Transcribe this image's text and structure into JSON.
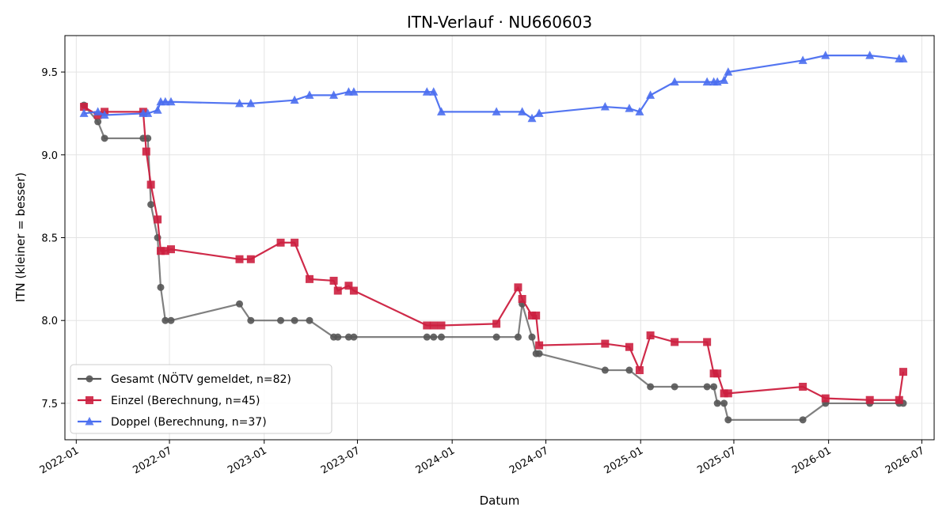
{
  "chart_data": {
    "type": "line",
    "title": "ITN-Verlauf · NU660603",
    "xlabel": "Datum",
    "ylabel": "ITN  (kleiner = besser)",
    "x_ticks": [
      "2022-01",
      "2022-07",
      "2023-01",
      "2023-07",
      "2024-01",
      "2024-07",
      "2025-01",
      "2025-07",
      "2026-01",
      "2026-07"
    ],
    "y_ticks": [
      "7.5",
      "8.0",
      "8.5",
      "9.0",
      "9.5"
    ],
    "xlim": [
      "2021-12-10",
      "2026-07-25"
    ],
    "ylim": [
      7.28,
      9.72
    ],
    "grid": true,
    "legend_position": "lower-left",
    "series": [
      {
        "name": "Gesamt (NÖTV gemeldet, n=82)",
        "color": "#555555",
        "marker": "circle",
        "points": [
          [
            "2022-01-16",
            9.3
          ],
          [
            "2022-02-12",
            9.2
          ],
          [
            "2022-02-25",
            9.1
          ],
          [
            "2022-05-11",
            9.1
          ],
          [
            "2022-05-20",
            9.1
          ],
          [
            "2022-05-26",
            8.7
          ],
          [
            "2022-06-08",
            8.5
          ],
          [
            "2022-06-14",
            8.2
          ],
          [
            "2022-06-23",
            8.0
          ],
          [
            "2022-07-04",
            8.0
          ],
          [
            "2022-11-14",
            8.1
          ],
          [
            "2022-12-06",
            8.0
          ],
          [
            "2023-02-02",
            8.0
          ],
          [
            "2023-03-01",
            8.0
          ],
          [
            "2023-03-30",
            8.0
          ],
          [
            "2023-05-16",
            7.9
          ],
          [
            "2023-05-24",
            7.9
          ],
          [
            "2023-06-14",
            7.9
          ],
          [
            "2023-06-24",
            7.9
          ],
          [
            "2023-11-13",
            7.9
          ],
          [
            "2023-11-26",
            7.9
          ],
          [
            "2023-12-11",
            7.9
          ],
          [
            "2024-03-27",
            7.9
          ],
          [
            "2024-05-08",
            7.9
          ],
          [
            "2024-05-16",
            8.1
          ],
          [
            "2024-06-04",
            7.9
          ],
          [
            "2024-06-12",
            7.8
          ],
          [
            "2024-06-18",
            7.8
          ],
          [
            "2024-10-24",
            7.7
          ],
          [
            "2024-12-10",
            7.7
          ],
          [
            "2025-01-20",
            7.6
          ],
          [
            "2025-03-08",
            7.6
          ],
          [
            "2025-05-10",
            7.6
          ],
          [
            "2025-05-23",
            7.6
          ],
          [
            "2025-05-30",
            7.5
          ],
          [
            "2025-06-12",
            7.5
          ],
          [
            "2025-06-20",
            7.4
          ],
          [
            "2025-11-12",
            7.4
          ],
          [
            "2025-12-26",
            7.5
          ],
          [
            "2026-03-22",
            7.5
          ],
          [
            "2026-05-18",
            7.5
          ],
          [
            "2026-05-26",
            7.5
          ]
        ]
      },
      {
        "name": "Einzel (Berechnung, n=45)",
        "color": "#cc1f3f",
        "marker": "square",
        "points": [
          [
            "2022-01-16",
            9.29
          ],
          [
            "2022-02-12",
            9.24
          ],
          [
            "2022-02-25",
            9.26
          ],
          [
            "2022-05-11",
            9.26
          ],
          [
            "2022-05-17",
            9.02
          ],
          [
            "2022-05-26",
            8.82
          ],
          [
            "2022-06-08",
            8.61
          ],
          [
            "2022-06-14",
            8.42
          ],
          [
            "2022-06-23",
            8.42
          ],
          [
            "2022-07-04",
            8.43
          ],
          [
            "2022-11-14",
            8.37
          ],
          [
            "2022-12-06",
            8.37
          ],
          [
            "2023-02-02",
            8.47
          ],
          [
            "2023-03-01",
            8.47
          ],
          [
            "2023-03-30",
            8.25
          ],
          [
            "2023-05-16",
            8.24
          ],
          [
            "2023-05-24",
            8.18
          ],
          [
            "2023-06-14",
            8.21
          ],
          [
            "2023-06-24",
            8.18
          ],
          [
            "2023-11-13",
            7.97
          ],
          [
            "2023-11-26",
            7.97
          ],
          [
            "2023-12-11",
            7.97
          ],
          [
            "2024-03-27",
            7.98
          ],
          [
            "2024-05-08",
            8.2
          ],
          [
            "2024-05-16",
            8.13
          ],
          [
            "2024-06-04",
            8.03
          ],
          [
            "2024-06-12",
            8.03
          ],
          [
            "2024-06-18",
            7.85
          ],
          [
            "2024-10-24",
            7.86
          ],
          [
            "2024-12-10",
            7.84
          ],
          [
            "2024-12-30",
            7.7
          ],
          [
            "2025-01-20",
            7.91
          ],
          [
            "2025-03-08",
            7.87
          ],
          [
            "2025-05-10",
            7.87
          ],
          [
            "2025-05-23",
            7.68
          ],
          [
            "2025-05-30",
            7.68
          ],
          [
            "2025-06-12",
            7.56
          ],
          [
            "2025-06-20",
            7.56
          ],
          [
            "2025-11-12",
            7.6
          ],
          [
            "2025-12-26",
            7.53
          ],
          [
            "2026-03-22",
            7.52
          ],
          [
            "2026-05-18",
            7.52
          ],
          [
            "2026-05-26",
            7.69
          ]
        ]
      },
      {
        "name": "Doppel (Berechnung, n=37)",
        "color": "#4a6ef0",
        "marker": "triangle",
        "points": [
          [
            "2022-01-16",
            9.25
          ],
          [
            "2022-02-12",
            9.26
          ],
          [
            "2022-02-25",
            9.24
          ],
          [
            "2022-05-11",
            9.25
          ],
          [
            "2022-05-20",
            9.25
          ],
          [
            "2022-06-08",
            9.27
          ],
          [
            "2022-06-14",
            9.32
          ],
          [
            "2022-06-23",
            9.32
          ],
          [
            "2022-07-04",
            9.32
          ],
          [
            "2022-11-14",
            9.31
          ],
          [
            "2022-12-06",
            9.31
          ],
          [
            "2023-03-01",
            9.33
          ],
          [
            "2023-03-30",
            9.36
          ],
          [
            "2023-05-16",
            9.36
          ],
          [
            "2023-06-14",
            9.38
          ],
          [
            "2023-06-24",
            9.38
          ],
          [
            "2023-11-13",
            9.38
          ],
          [
            "2023-11-26",
            9.38
          ],
          [
            "2023-12-11",
            9.26
          ],
          [
            "2024-03-27",
            9.26
          ],
          [
            "2024-05-16",
            9.26
          ],
          [
            "2024-06-04",
            9.22
          ],
          [
            "2024-06-18",
            9.25
          ],
          [
            "2024-10-24",
            9.29
          ],
          [
            "2024-12-10",
            9.28
          ],
          [
            "2024-12-30",
            9.26
          ],
          [
            "2025-01-20",
            9.36
          ],
          [
            "2025-03-08",
            9.44
          ],
          [
            "2025-05-10",
            9.44
          ],
          [
            "2025-05-23",
            9.44
          ],
          [
            "2025-05-30",
            9.44
          ],
          [
            "2025-06-12",
            9.45
          ],
          [
            "2025-06-20",
            9.5
          ],
          [
            "2025-11-12",
            9.57
          ],
          [
            "2025-12-26",
            9.6
          ],
          [
            "2026-03-22",
            9.6
          ],
          [
            "2026-05-18",
            9.58
          ],
          [
            "2026-05-26",
            9.58
          ]
        ]
      }
    ]
  }
}
